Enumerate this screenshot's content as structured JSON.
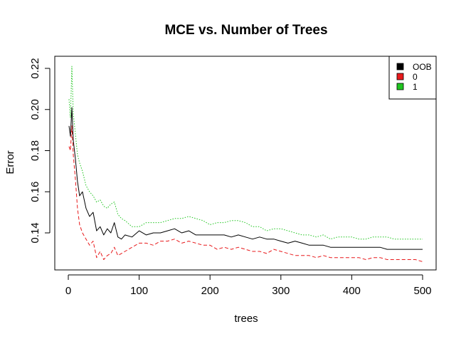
{
  "chart_data": {
    "type": "line",
    "title": "MCE vs. Number of Trees",
    "xlabel": "trees",
    "ylabel": "Error",
    "xlim": [
      1,
      500
    ],
    "ylim": [
      0.12,
      0.225
    ],
    "x_ticks": [
      0,
      100,
      200,
      300,
      400,
      500
    ],
    "x_tick_labels": [
      "0",
      "100",
      "200",
      "300",
      "400",
      "500"
    ],
    "y_ticks": [
      0.14,
      0.16,
      0.18,
      0.2,
      0.22
    ],
    "y_tick_labels": [
      "0.14",
      "0.16",
      "0.18",
      "0.20",
      "0.22"
    ],
    "grid": false,
    "legend": {
      "position": "top-right"
    },
    "series": [
      {
        "name": "OOB",
        "color": "#000000",
        "line_style": "solid",
        "x": [
          1,
          3,
          5,
          7,
          10,
          13,
          16,
          20,
          25,
          30,
          35,
          40,
          45,
          50,
          55,
          60,
          65,
          70,
          75,
          80,
          90,
          100,
          110,
          120,
          130,
          140,
          150,
          160,
          170,
          180,
          190,
          200,
          210,
          220,
          230,
          240,
          250,
          260,
          270,
          280,
          290,
          300,
          310,
          320,
          330,
          340,
          350,
          360,
          370,
          380,
          390,
          400,
          410,
          420,
          430,
          440,
          450,
          460,
          470,
          480,
          490,
          500
        ],
        "values": [
          0.192,
          0.187,
          0.201,
          0.185,
          0.176,
          0.165,
          0.158,
          0.16,
          0.152,
          0.148,
          0.15,
          0.141,
          0.143,
          0.139,
          0.142,
          0.14,
          0.145,
          0.138,
          0.137,
          0.139,
          0.138,
          0.141,
          0.139,
          0.14,
          0.14,
          0.141,
          0.142,
          0.14,
          0.141,
          0.139,
          0.139,
          0.139,
          0.139,
          0.139,
          0.138,
          0.139,
          0.138,
          0.137,
          0.138,
          0.137,
          0.137,
          0.136,
          0.135,
          0.136,
          0.135,
          0.134,
          0.134,
          0.134,
          0.133,
          0.133,
          0.133,
          0.133,
          0.133,
          0.133,
          0.133,
          0.133,
          0.132,
          0.132,
          0.132,
          0.132,
          0.132,
          0.132
        ]
      },
      {
        "name": "0",
        "color": "#e8191b",
        "line_style": "dashed",
        "x": [
          1,
          3,
          5,
          7,
          10,
          13,
          16,
          20,
          25,
          30,
          35,
          40,
          45,
          50,
          55,
          60,
          65,
          70,
          75,
          80,
          90,
          100,
          110,
          120,
          130,
          140,
          150,
          160,
          170,
          180,
          190,
          200,
          210,
          220,
          230,
          240,
          250,
          260,
          270,
          280,
          290,
          300,
          310,
          320,
          330,
          340,
          350,
          360,
          370,
          380,
          390,
          400,
          410,
          420,
          430,
          440,
          450,
          460,
          470,
          480,
          490,
          500
        ],
        "values": [
          0.182,
          0.18,
          0.192,
          0.178,
          0.166,
          0.152,
          0.144,
          0.14,
          0.137,
          0.134,
          0.136,
          0.128,
          0.131,
          0.127,
          0.129,
          0.13,
          0.133,
          0.129,
          0.13,
          0.131,
          0.133,
          0.135,
          0.135,
          0.134,
          0.136,
          0.136,
          0.137,
          0.135,
          0.136,
          0.135,
          0.134,
          0.134,
          0.132,
          0.133,
          0.132,
          0.133,
          0.132,
          0.131,
          0.131,
          0.13,
          0.132,
          0.131,
          0.13,
          0.129,
          0.129,
          0.129,
          0.128,
          0.129,
          0.128,
          0.128,
          0.128,
          0.128,
          0.128,
          0.127,
          0.128,
          0.128,
          0.127,
          0.127,
          0.127,
          0.127,
          0.127,
          0.126
        ]
      },
      {
        "name": "1",
        "color": "#1fc51f",
        "line_style": "dotted",
        "x": [
          1,
          3,
          5,
          7,
          10,
          13,
          16,
          20,
          25,
          30,
          35,
          40,
          45,
          50,
          55,
          60,
          65,
          70,
          75,
          80,
          90,
          100,
          110,
          120,
          130,
          140,
          150,
          160,
          170,
          180,
          190,
          200,
          210,
          220,
          230,
          240,
          250,
          260,
          270,
          280,
          290,
          300,
          310,
          320,
          330,
          340,
          350,
          360,
          370,
          380,
          390,
          400,
          410,
          420,
          430,
          440,
          450,
          460,
          470,
          480,
          490,
          500
        ],
        "values": [
          0.205,
          0.196,
          0.221,
          0.198,
          0.188,
          0.178,
          0.174,
          0.17,
          0.163,
          0.16,
          0.158,
          0.155,
          0.156,
          0.153,
          0.152,
          0.154,
          0.155,
          0.149,
          0.147,
          0.146,
          0.143,
          0.143,
          0.145,
          0.145,
          0.145,
          0.146,
          0.147,
          0.147,
          0.148,
          0.147,
          0.146,
          0.144,
          0.145,
          0.145,
          0.146,
          0.146,
          0.145,
          0.143,
          0.143,
          0.141,
          0.142,
          0.142,
          0.141,
          0.14,
          0.139,
          0.139,
          0.138,
          0.139,
          0.137,
          0.138,
          0.138,
          0.138,
          0.137,
          0.137,
          0.138,
          0.138,
          0.138,
          0.137,
          0.137,
          0.137,
          0.137,
          0.137
        ]
      }
    ]
  }
}
